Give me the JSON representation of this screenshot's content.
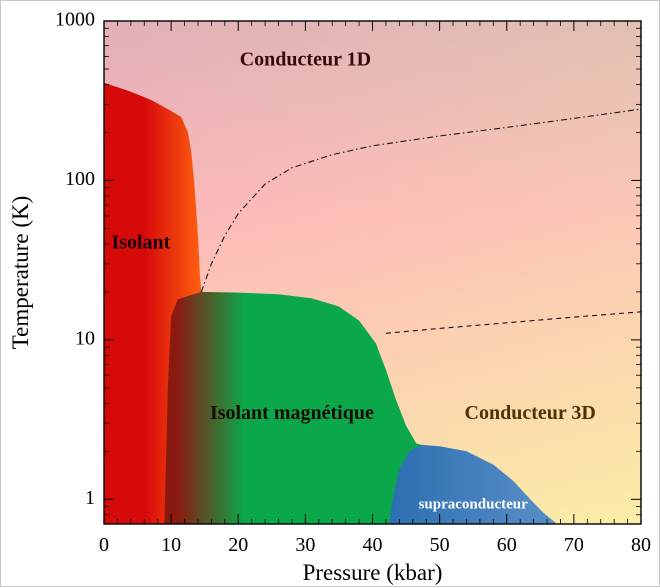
{
  "chart_data": {
    "type": "area",
    "title": "",
    "xlabel": "Pressure (kbar)",
    "ylabel": "Temperature (K)",
    "xlim": [
      0,
      80
    ],
    "ylim": [
      0.7,
      1000
    ],
    "yscale": "log",
    "grid": false,
    "xticks": [
      0,
      10,
      20,
      30,
      40,
      50,
      60,
      70,
      80
    ],
    "yticks": [
      {
        "value": 1,
        "label": "1"
      },
      {
        "value": 10,
        "label": "10"
      },
      {
        "value": 100,
        "label": "100"
      },
      {
        "value": 1000,
        "label": "1000"
      }
    ],
    "background": {
      "top_color": "#d4aeb8",
      "middle_color": "#fcb8bc",
      "bottom_color": "#fbf3a6"
    },
    "regions": [
      {
        "name": "isolant",
        "label": "Isolant",
        "label_at": {
          "x": 5.5,
          "y": 40
        },
        "label_color": "#1a0000",
        "colors": [
          "#d60a0a",
          "#ff6010"
        ],
        "boundary": [
          {
            "x": 0,
            "y": 0.7
          },
          {
            "x": 0,
            "y": 410
          },
          {
            "x": 4,
            "y": 360
          },
          {
            "x": 7,
            "y": 320
          },
          {
            "x": 9.5,
            "y": 280
          },
          {
            "x": 11.5,
            "y": 250
          },
          {
            "x": 12.5,
            "y": 200
          },
          {
            "x": 13,
            "y": 150
          },
          {
            "x": 13.5,
            "y": 90
          },
          {
            "x": 14.0,
            "y": 45
          },
          {
            "x": 14.3,
            "y": 25
          },
          {
            "x": 14.5,
            "y": 20
          },
          {
            "x": 14.5,
            "y": 0.7
          }
        ]
      },
      {
        "name": "isolant-magnetique",
        "label": "Isolant magnétique",
        "label_at": {
          "x": 28,
          "y": 3.4
        },
        "label_color": "#1a0a00",
        "colors": [
          "#8a1a10",
          "#0aa84a"
        ],
        "boundary": [
          {
            "x": 9,
            "y": 0.7
          },
          {
            "x": 9.5,
            "y": 5
          },
          {
            "x": 10,
            "y": 14
          },
          {
            "x": 11,
            "y": 18
          },
          {
            "x": 14.5,
            "y": 20
          },
          {
            "x": 20,
            "y": 19.8
          },
          {
            "x": 26,
            "y": 19.3
          },
          {
            "x": 31,
            "y": 18.2
          },
          {
            "x": 35,
            "y": 16.2
          },
          {
            "x": 38,
            "y": 13.2
          },
          {
            "x": 40.5,
            "y": 9.5
          },
          {
            "x": 42,
            "y": 6.5
          },
          {
            "x": 43.5,
            "y": 4.2
          },
          {
            "x": 45,
            "y": 2.9
          },
          {
            "x": 46.5,
            "y": 2.25
          },
          {
            "x": 47.2,
            "y": 2.2
          },
          {
            "x": 44,
            "y": 1.5
          },
          {
            "x": 43,
            "y": 0.7
          }
        ]
      },
      {
        "name": "supraconducteur",
        "label": "supraconducteur",
        "label_at": {
          "x": 55,
          "y": 0.92
        },
        "label_color": "#ffffff",
        "colors": [
          "#2c6fb0",
          "#5a8fc8"
        ],
        "boundary": [
          {
            "x": 42.5,
            "y": 0.7
          },
          {
            "x": 43,
            "y": 1.0
          },
          {
            "x": 44,
            "y": 1.55
          },
          {
            "x": 45.5,
            "y": 2.0
          },
          {
            "x": 47.2,
            "y": 2.2
          },
          {
            "x": 50,
            "y": 2.15
          },
          {
            "x": 54,
            "y": 2.0
          },
          {
            "x": 58,
            "y": 1.65
          },
          {
            "x": 61,
            "y": 1.3
          },
          {
            "x": 63.5,
            "y": 1.0
          },
          {
            "x": 65.5,
            "y": 0.82
          },
          {
            "x": 67.5,
            "y": 0.7
          }
        ]
      },
      {
        "name": "conducteur-1d",
        "label": "Conducteur 1D",
        "label_at": {
          "x": 30,
          "y": 560
        },
        "label_color": "#3a0a0a"
      },
      {
        "name": "conducteur-3d",
        "label": "Conducteur 3D",
        "label_at": {
          "x": 63.5,
          "y": 3.4
        },
        "label_color": "#4a3400"
      }
    ],
    "lines": [
      {
        "name": "crossover-1d",
        "style": "dashdot",
        "points": [
          {
            "x": 14.5,
            "y": 20
          },
          {
            "x": 16,
            "y": 30
          },
          {
            "x": 18,
            "y": 45
          },
          {
            "x": 20,
            "y": 62
          },
          {
            "x": 24,
            "y": 95
          },
          {
            "x": 28,
            "y": 120
          },
          {
            "x": 34,
            "y": 145
          },
          {
            "x": 40,
            "y": 165
          },
          {
            "x": 50,
            "y": 190
          },
          {
            "x": 60,
            "y": 215
          },
          {
            "x": 70,
            "y": 245
          },
          {
            "x": 80,
            "y": 280
          }
        ]
      },
      {
        "name": "crossover-3d",
        "style": "dashed",
        "points": [
          {
            "x": 42,
            "y": 11
          },
          {
            "x": 50,
            "y": 11.8
          },
          {
            "x": 60,
            "y": 12.8
          },
          {
            "x": 70,
            "y": 13.9
          },
          {
            "x": 80,
            "y": 15
          }
        ]
      }
    ]
  }
}
